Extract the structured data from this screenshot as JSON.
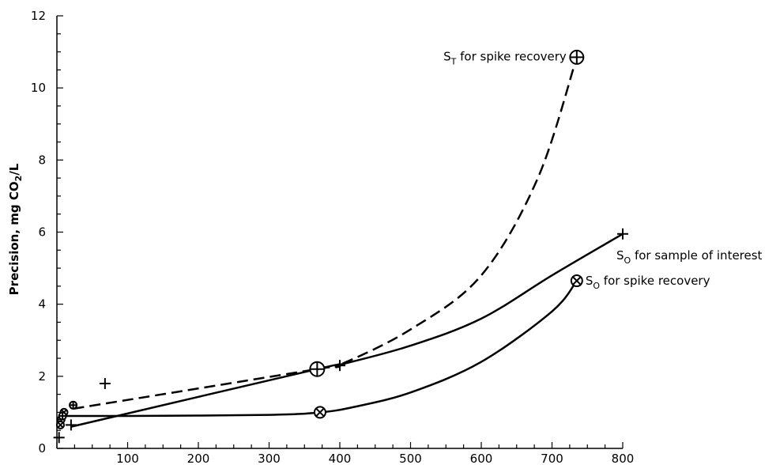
{
  "chart_data": {
    "type": "line",
    "ylabel": {
      "main": "Precision, mg CO",
      "sub": "2",
      "tail": "/L"
    },
    "xlim": [
      0,
      800
    ],
    "ylim": [
      0,
      12
    ],
    "x_ticks": [
      100,
      200,
      300,
      400,
      500,
      600,
      700,
      800
    ],
    "y_ticks": [
      0,
      2,
      4,
      6,
      8,
      10,
      12
    ],
    "grid": false,
    "series": [
      {
        "key": "st_spike",
        "style": "dashed",
        "marker": "circle-plus",
        "points": [
          [
            23,
            1.1
          ],
          [
            368,
            2.2
          ],
          [
            400,
            2.32
          ],
          [
            500,
            3.3
          ],
          [
            600,
            4.8
          ],
          [
            680,
            7.5
          ],
          [
            735,
            10.85
          ]
        ],
        "marked": [
          [
            735,
            10.85
          ],
          [
            368,
            2.2
          ]
        ]
      },
      {
        "key": "so_sample",
        "style": "solid",
        "marker": "plus",
        "points": [
          [
            20,
            0.6
          ],
          [
            368,
            2.2
          ],
          [
            400,
            2.32
          ],
          [
            500,
            2.85
          ],
          [
            600,
            3.6
          ],
          [
            700,
            4.8
          ],
          [
            800,
            5.95
          ]
        ],
        "marked": [
          [
            800,
            5.95
          ],
          [
            400,
            2.3
          ],
          [
            68,
            1.8
          ],
          [
            20,
            0.65
          ],
          [
            3,
            0.3
          ]
        ]
      },
      {
        "key": "so_spike",
        "style": "solid",
        "marker": "circle-x",
        "points": [
          [
            3,
            0.9
          ],
          [
            100,
            0.9
          ],
          [
            300,
            0.93
          ],
          [
            372,
            1.0
          ],
          [
            420,
            1.15
          ],
          [
            500,
            1.55
          ],
          [
            600,
            2.4
          ],
          [
            700,
            3.8
          ],
          [
            735,
            4.65
          ]
        ],
        "marked": [
          [
            735,
            4.65
          ],
          [
            372,
            1.0
          ]
        ]
      }
    ],
    "cluster_markers": [
      [
        23,
        1.2
      ],
      [
        10,
        1.0
      ],
      [
        6,
        0.8
      ],
      [
        5,
        0.65
      ],
      [
        8,
        0.9
      ]
    ],
    "annotations": [
      {
        "key": "st_label",
        "main": "S",
        "sub": "T",
        "text": " for spike recovery",
        "at": [
          735,
          10.85
        ],
        "anchor": "end"
      },
      {
        "key": "so_sample_label",
        "main": "S",
        "sub": "O",
        "text": " for sample of interest",
        "at": [
          800,
          5.95
        ],
        "anchor": "below"
      },
      {
        "key": "so_spike_label",
        "main": "S",
        "sub": "O",
        "text": " for spike recovery",
        "at": [
          735,
          4.65
        ],
        "anchor": "start"
      }
    ]
  }
}
